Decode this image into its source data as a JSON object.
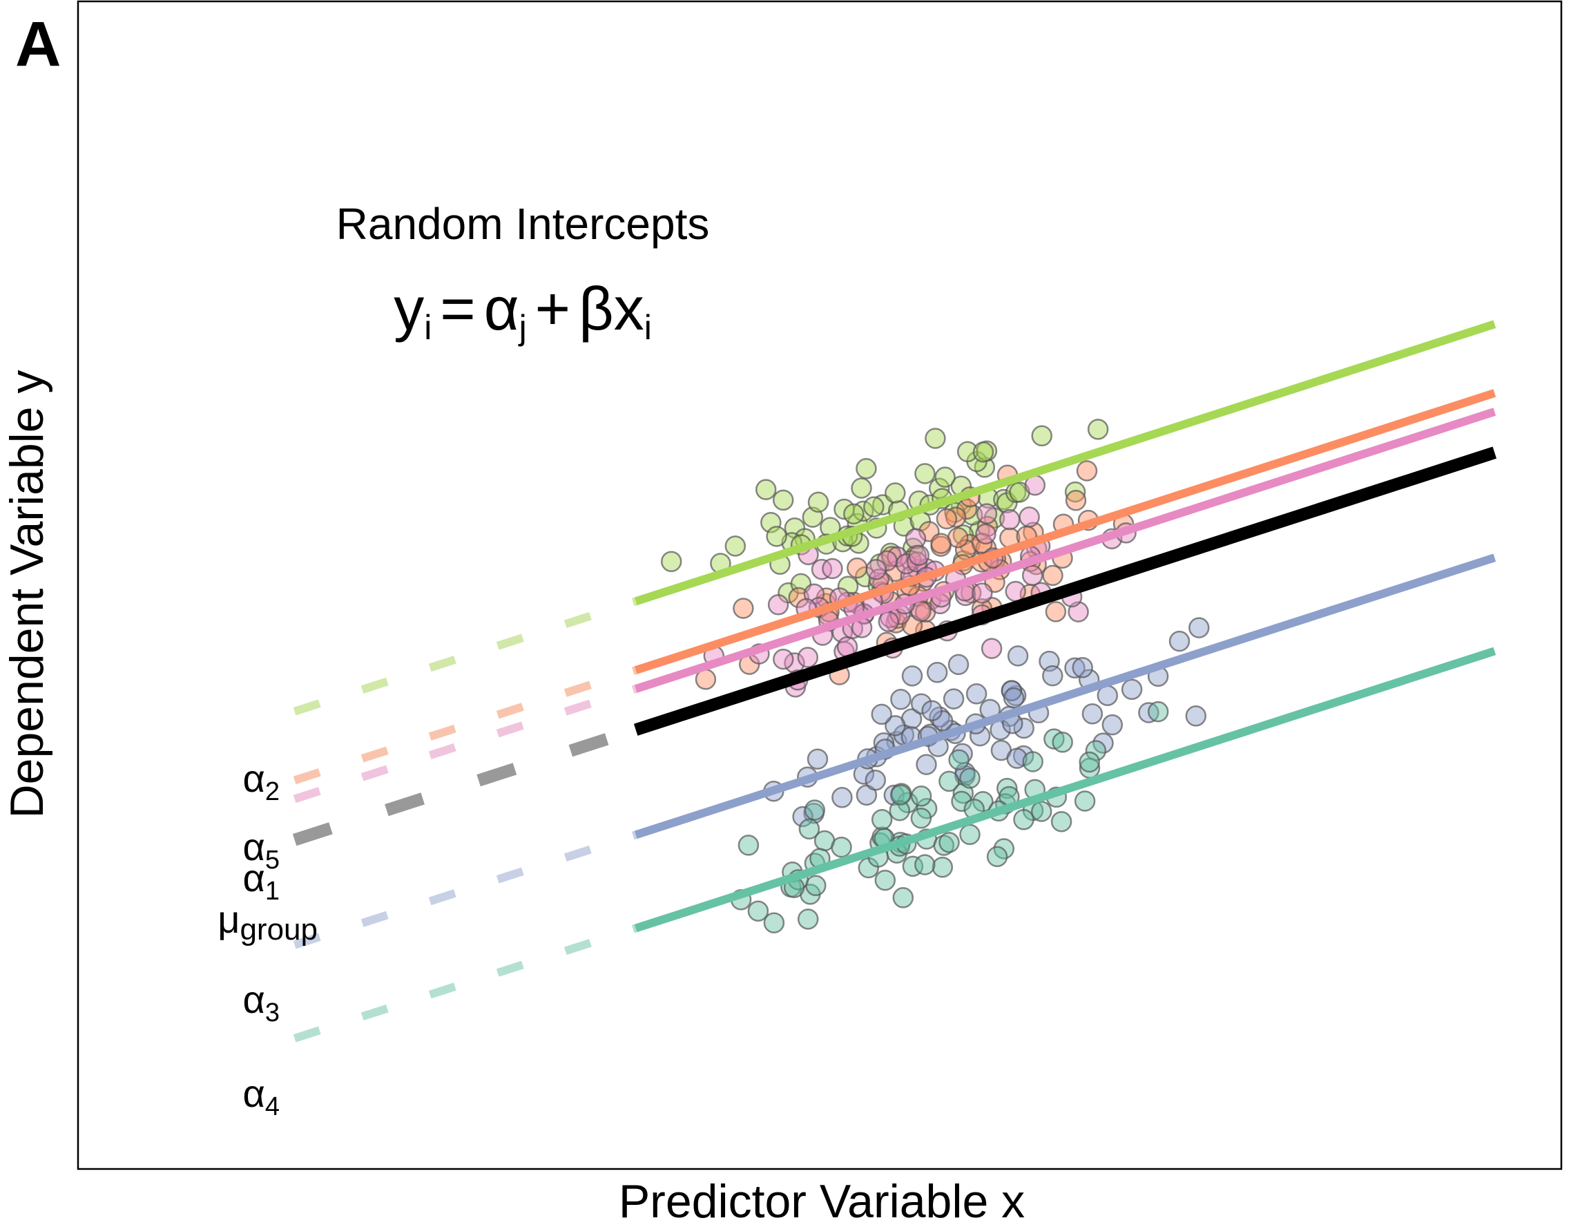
{
  "panel_label": "A",
  "chart_data": {
    "type": "scatter",
    "title": "Random Intercepts",
    "equation": {
      "y": "y",
      "y_sub": "i",
      "eq": "=",
      "alpha": "α",
      "alpha_sub": "j",
      "plus": "+",
      "beta": "β",
      "x": "x",
      "x_sub": "i"
    },
    "xlabel": "Predictor Variable x",
    "ylabel": "Dependent Variable y",
    "xlim": [
      0,
      100
    ],
    "ylim": [
      0,
      100
    ],
    "grid": false,
    "legend": "none",
    "slope": 0.41,
    "fit_x_range": [
      37.6,
      95.5
    ],
    "extrapolate_from_x": 14.6,
    "group_line": {
      "label": "μ",
      "label_sub": "group",
      "intercept": 22.2,
      "color": "#000000",
      "dash_color": "#999999"
    },
    "series": [
      {
        "label": "α",
        "label_sub": "2",
        "intercept": 33.2,
        "color": "#a6d854",
        "light": "#d1e8a8",
        "center": [
          55,
          56
        ],
        "spread": [
          10,
          6
        ],
        "n": 70
      },
      {
        "label": "α",
        "label_sub": "5",
        "intercept": 27.3,
        "color": "#fc8d62",
        "light": "#f9c4ad",
        "center": [
          58,
          51
        ],
        "spread": [
          10,
          5
        ],
        "n": 70
      },
      {
        "label": "α",
        "label_sub": "1",
        "intercept": 25.7,
        "color": "#e78ac3",
        "light": "#f1c4de",
        "center": [
          58,
          49
        ],
        "spread": [
          10,
          5
        ],
        "n": 70
      },
      {
        "label": "α",
        "label_sub": "3",
        "intercept": 13.2,
        "color": "#8da0cb",
        "light": "#c8d0e6",
        "center": [
          60,
          35
        ],
        "spread": [
          12,
          6
        ],
        "n": 70
      },
      {
        "label": "α",
        "label_sub": "4",
        "intercept": 5.2,
        "color": "#66c2a5",
        "light": "#b3e0d2",
        "center": [
          55,
          29
        ],
        "spread": [
          12,
          6
        ],
        "n": 70
      }
    ]
  }
}
